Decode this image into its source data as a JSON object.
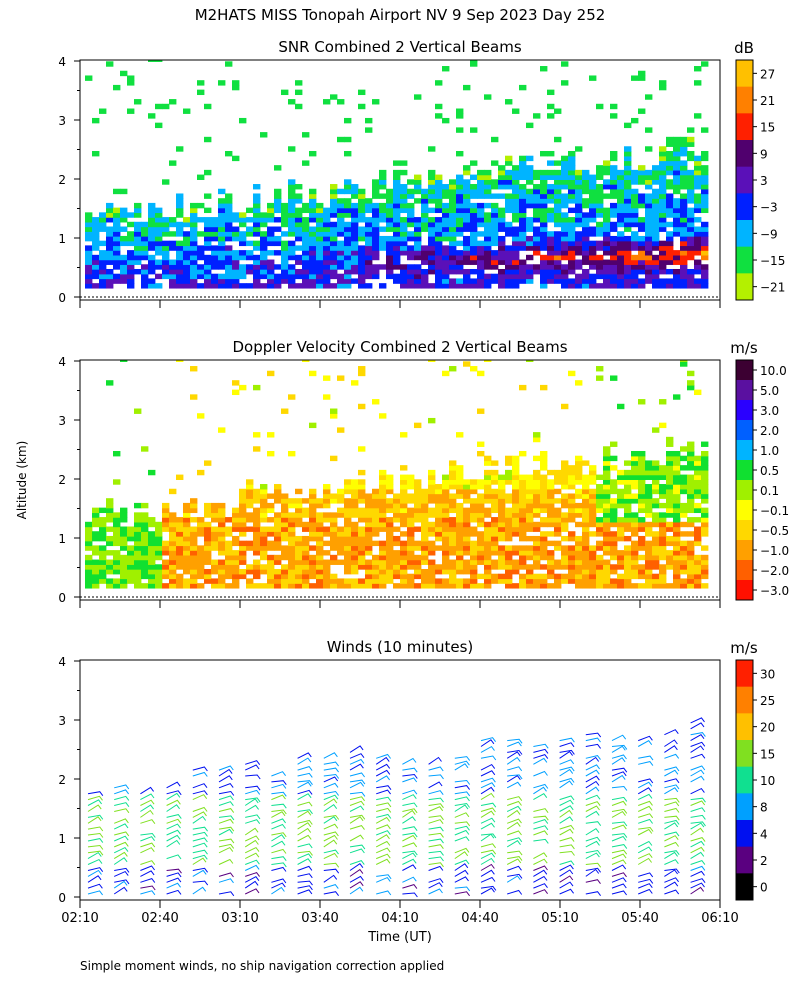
{
  "figure": {
    "title": "M2HATS MISS Tonopah Airport NV   9 Sep 2023 Day 252",
    "ylabel": "Altitude (km)",
    "xlabel": "Time (UT)",
    "footnote": "Simple moment winds, no ship navigation correction applied"
  },
  "chart_data": [
    {
      "type": "heatmap",
      "title": "SNR Combined 2 Vertical Beams",
      "unit": "dB",
      "ylim": [
        0,
        4
      ],
      "yticks": [
        "0",
        "1",
        "2",
        "3",
        "4"
      ],
      "colorbar": {
        "labels": [
          "27",
          "21",
          "15",
          "9",
          "3",
          "−3",
          "−9",
          "−15",
          "−21"
        ],
        "colors": [
          "#ffc000",
          "#ff8000",
          "#ff2000",
          "#50006e",
          "#5a10b8",
          "#0020ff",
          "#00b4ff",
          "#10e040",
          "#b4f000"
        ]
      }
    },
    {
      "type": "heatmap",
      "title": "Doppler Velocity Combined 2 Vertical Beams",
      "unit": "m/s",
      "ylim": [
        0,
        4
      ],
      "yticks": [
        "0",
        "1",
        "2",
        "3",
        "4"
      ],
      "colorbar": {
        "labels": [
          "10.0",
          "5.0",
          "3.0",
          "2.0",
          "1.0",
          "0.5",
          "0.1",
          "−0.1",
          "−0.5",
          "−1.0",
          "−2.0",
          "−3.0"
        ],
        "colors": [
          "#3c0032",
          "#5a10a0",
          "#2a00ff",
          "#0060ff",
          "#00b4ff",
          "#10e030",
          "#a0f000",
          "#ffff00",
          "#ffd800",
          "#ffa000",
          "#ff6000",
          "#ff1000"
        ]
      }
    },
    {
      "type": "scatter",
      "title": "Winds (10 minutes)",
      "unit": "m/s",
      "ylim": [
        0,
        4
      ],
      "yticks": [
        "0",
        "1",
        "2",
        "3",
        "4"
      ],
      "x_tick_labels": [
        "02:10",
        "02:40",
        "03:10",
        "03:40",
        "04:10",
        "04:40",
        "05:10",
        "05:40",
        "06:10"
      ],
      "colorbar": {
        "labels": [
          "30",
          "25",
          "20",
          "15",
          "10",
          "8",
          "4",
          "2",
          "0"
        ],
        "colors": [
          "#ff2000",
          "#ff8000",
          "#ffc000",
          "#80e020",
          "#10e090",
          "#00a0ff",
          "#0010f0",
          "#5a0080",
          "#000000"
        ]
      }
    }
  ]
}
